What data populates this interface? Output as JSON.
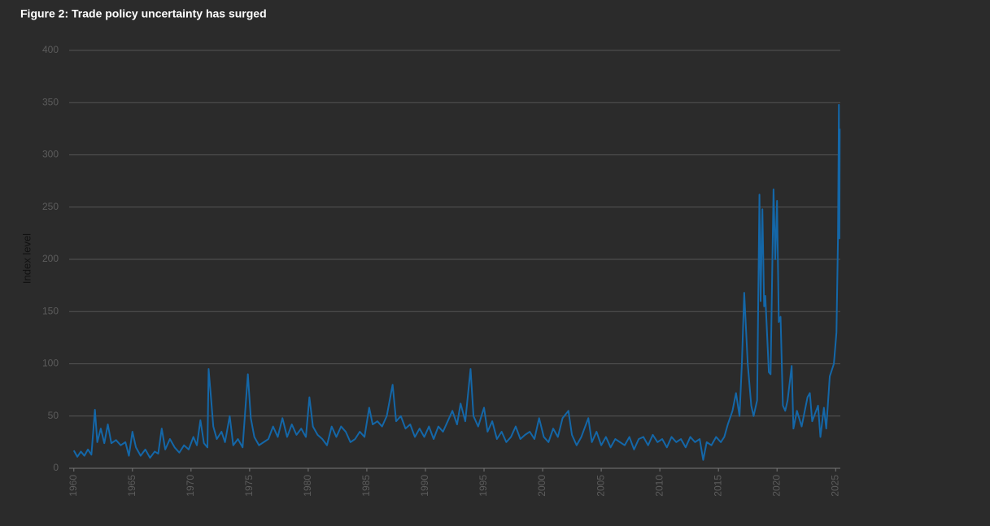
{
  "chart_data": {
    "type": "line",
    "title": "Figure 2: Trade policy uncertainty has surged",
    "y_label": "Index level",
    "xlim": [
      1959.6,
      2025.4
    ],
    "ylim": [
      0,
      400
    ],
    "xticks": [
      1960,
      1965,
      1970,
      1975,
      1980,
      1985,
      1990,
      1995,
      2000,
      2005,
      2010,
      2015,
      2020,
      2025
    ],
    "yticks": [
      0,
      50,
      100,
      150,
      200,
      250,
      300,
      350,
      400
    ],
    "grid": true,
    "x": [
      1960.0,
      1960.3,
      1960.6,
      1960.9,
      1961.2,
      1961.5,
      1961.8,
      1962.0,
      1962.3,
      1962.6,
      1962.9,
      1963.2,
      1963.6,
      1964.0,
      1964.4,
      1964.7,
      1965.0,
      1965.3,
      1965.7,
      1966.1,
      1966.5,
      1966.9,
      1967.2,
      1967.5,
      1967.8,
      1968.2,
      1968.6,
      1969.0,
      1969.4,
      1969.8,
      1970.2,
      1970.5,
      1970.8,
      1971.1,
      1971.4,
      1971.5,
      1971.7,
      1971.9,
      1972.2,
      1972.6,
      1972.9,
      1973.3,
      1973.6,
      1974.0,
      1974.4,
      1974.85,
      1975.1,
      1975.4,
      1975.8,
      1976.2,
      1976.6,
      1977.0,
      1977.4,
      1977.8,
      1978.2,
      1978.6,
      1979.0,
      1979.4,
      1979.8,
      1980.1,
      1980.4,
      1980.8,
      1981.2,
      1981.6,
      1982.0,
      1982.4,
      1982.8,
      1983.2,
      1983.6,
      1984.0,
      1984.4,
      1984.8,
      1985.2,
      1985.5,
      1985.9,
      1986.3,
      1986.7,
      1987.2,
      1987.5,
      1987.9,
      1988.3,
      1988.7,
      1989.1,
      1989.5,
      1989.9,
      1990.3,
      1990.7,
      1991.1,
      1991.5,
      1991.9,
      1992.3,
      1992.7,
      1993.0,
      1993.4,
      1993.85,
      1994.1,
      1994.5,
      1995.0,
      1995.3,
      1995.7,
      1996.1,
      1996.5,
      1996.9,
      1997.3,
      1997.7,
      1998.1,
      1998.5,
      1998.9,
      1999.3,
      1999.7,
      2000.1,
      2000.5,
      2000.9,
      2001.3,
      2001.7,
      2002.2,
      2002.5,
      2002.9,
      2003.3,
      2003.9,
      2004.2,
      2004.6,
      2005.0,
      2005.4,
      2005.8,
      2006.2,
      2006.6,
      2007.0,
      2007.4,
      2007.8,
      2008.2,
      2008.6,
      2009.0,
      2009.4,
      2009.8,
      2010.2,
      2010.6,
      2011.0,
      2011.4,
      2011.8,
      2012.2,
      2012.6,
      2013.0,
      2013.4,
      2013.7,
      2014.0,
      2014.4,
      2014.8,
      2015.2,
      2015.5,
      2015.8,
      2016.2,
      2016.5,
      2016.8,
      2017.0,
      2017.2,
      2017.5,
      2017.8,
      2018.0,
      2018.3,
      2018.5,
      2018.6,
      2018.75,
      2018.9,
      2019.0,
      2019.3,
      2019.45,
      2019.7,
      2019.85,
      2020.0,
      2020.15,
      2020.3,
      2020.5,
      2020.7,
      2020.9,
      2021.25,
      2021.4,
      2021.7,
      2022.1,
      2022.6,
      2022.8,
      2023.0,
      2023.5,
      2023.7,
      2024.0,
      2024.2,
      2024.5,
      2024.85,
      2025.07,
      2025.2,
      2025.28,
      2025.32,
      2025.35
    ],
    "series": [
      {
        "name": "Trade policy uncertainty",
        "color": "#1467a8",
        "values": [
          17,
          11,
          16,
          12,
          18,
          13,
          56,
          25,
          38,
          24,
          42,
          24,
          27,
          22,
          25,
          12,
          35,
          20,
          12,
          18,
          10,
          16,
          14,
          38,
          18,
          28,
          20,
          15,
          22,
          18,
          30,
          22,
          46,
          24,
          20,
          95,
          68,
          40,
          28,
          35,
          25,
          50,
          22,
          28,
          20,
          90,
          48,
          30,
          22,
          25,
          28,
          40,
          30,
          48,
          30,
          42,
          32,
          38,
          30,
          68,
          40,
          32,
          28,
          22,
          40,
          30,
          40,
          35,
          25,
          28,
          35,
          30,
          58,
          42,
          45,
          40,
          50,
          80,
          45,
          50,
          38,
          42,
          30,
          38,
          30,
          40,
          28,
          40,
          35,
          45,
          55,
          42,
          62,
          45,
          95,
          50,
          40,
          58,
          35,
          45,
          28,
          35,
          25,
          30,
          40,
          28,
          32,
          35,
          28,
          48,
          30,
          25,
          38,
          30,
          48,
          55,
          32,
          22,
          30,
          48,
          25,
          35,
          22,
          30,
          20,
          28,
          25,
          22,
          30,
          18,
          28,
          30,
          22,
          32,
          25,
          28,
          20,
          30,
          25,
          28,
          20,
          30,
          25,
          28,
          8,
          25,
          22,
          30,
          25,
          30,
          42,
          55,
          72,
          50,
          100,
          168,
          100,
          60,
          50,
          65,
          262,
          160,
          248,
          155,
          165,
          92,
          90,
          267,
          200,
          256,
          140,
          145,
          60,
          55,
          65,
          98,
          38,
          55,
          40,
          68,
          72,
          45,
          60,
          30,
          58,
          38,
          88,
          100,
          130,
          220,
          348,
          220,
          325
        ]
      }
    ]
  }
}
